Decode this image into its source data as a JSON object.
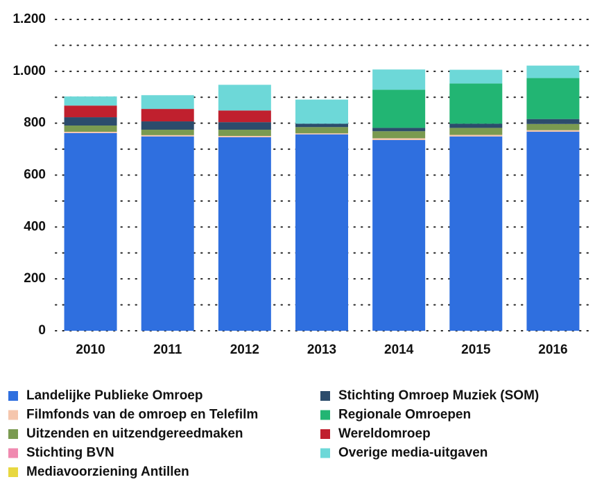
{
  "chart_data": {
    "type": "stacked_bar",
    "categories": [
      "2010",
      "2011",
      "2012",
      "2013",
      "2014",
      "2015",
      "2016"
    ],
    "series": [
      {
        "name": "Landelijke Publieke Omroep",
        "color": "#2f6fdf",
        "values": [
          762,
          749,
          746,
          757,
          735,
          749,
          767
        ]
      },
      {
        "name": "Filmfonds van de omroep en Telefilm",
        "color": "#f5c6ad",
        "values": [
          5,
          5,
          5,
          4,
          7,
          6,
          6
        ]
      },
      {
        "name": "Uitzenden en uitzendgereedmaken",
        "color": "#7a9a50",
        "values": [
          24,
          21,
          24,
          24,
          27,
          27,
          24
        ]
      },
      {
        "name": "Stichting BVN",
        "color": "#f08ab0",
        "values": [
          0,
          0,
          0,
          0,
          0,
          0,
          0
        ]
      },
      {
        "name": "Mediavoorziening Antillen",
        "color": "#e8d840",
        "values": [
          0,
          0,
          0,
          0,
          0,
          0,
          0
        ]
      },
      {
        "name": "Stichting Omroep Muziek (SOM)",
        "color": "#2c4c6c",
        "values": [
          32,
          32,
          29,
          13,
          13,
          16,
          19
        ]
      },
      {
        "name": "Regionale Omroepen",
        "color": "#22b573",
        "values": [
          0,
          0,
          0,
          0,
          147,
          155,
          158
        ]
      },
      {
        "name": "Wereldomroep",
        "color": "#c0202e",
        "values": [
          45,
          48,
          45,
          0,
          0,
          0,
          0
        ]
      },
      {
        "name": "Overige media-uitgaven",
        "color": "#6dd8d8",
        "values": [
          35,
          53,
          99,
          93,
          78,
          53,
          48
        ]
      }
    ],
    "ylim": [
      0,
      1200
    ],
    "yticks": [
      0,
      200,
      400,
      600,
      800,
      {
        "value": 1000,
        "label": "1.000"
      },
      {
        "value": 1200,
        "label": "1.200"
      }
    ],
    "minor_yticks": [
      100,
      300,
      500,
      700,
      900,
      1100
    ],
    "grid": true
  }
}
